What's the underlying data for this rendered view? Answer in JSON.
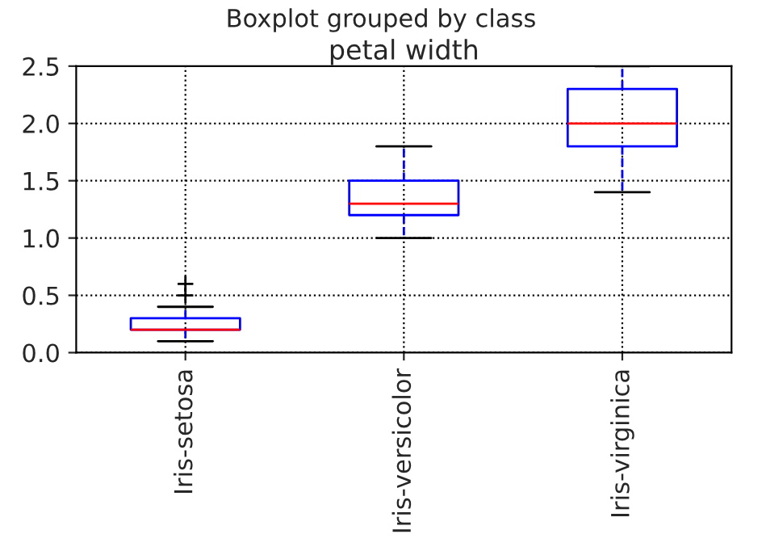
{
  "chart_data": {
    "type": "box",
    "title": "Boxplot grouped by class",
    "subtitle": "petal width",
    "categories": [
      "Iris-setosa",
      "Iris-versicolor",
      "Iris-virginica"
    ],
    "series": [
      {
        "color": "#0000ff",
        "boxes": [
          {
            "low": 0.1,
            "q1": 0.2,
            "median": 0.2,
            "q3": 0.3,
            "high": 0.4,
            "outliers": [
              0.5,
              0.6
            ]
          },
          {
            "low": 1.0,
            "q1": 1.2,
            "median": 1.3,
            "q3": 1.5,
            "high": 1.8
          },
          {
            "low": 1.4,
            "q1": 1.8,
            "median": 2.0,
            "q3": 2.3,
            "high": 2.5
          }
        ]
      }
    ],
    "ylim": [
      0.0,
      2.5
    ],
    "yticks": [
      {
        "value": 0.0,
        "label": "0.0"
      },
      {
        "value": 0.5,
        "label": "0.5"
      },
      {
        "value": 1.0,
        "label": "1.0"
      },
      {
        "value": 1.5,
        "label": "1.5"
      },
      {
        "value": 2.0,
        "label": "2.0"
      },
      {
        "value": 2.5,
        "label": "2.5"
      }
    ],
    "grid": true,
    "marker": "cross"
  }
}
